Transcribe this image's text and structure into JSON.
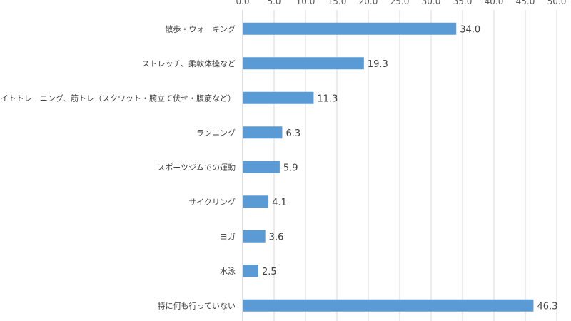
{
  "chart_data": {
    "type": "bar",
    "orientation": "horizontal",
    "categories": [
      "散歩・ウォーキング",
      "ストレッチ、柔軟体操など",
      "ウェイトトレーニング、筋トレ（スクワット・腕立て伏せ・腹筋など）",
      "ランニング",
      "スポーツジムでの運動",
      "サイクリング",
      "ヨガ",
      "水泳",
      "特に何も行っていない"
    ],
    "values": [
      34.0,
      19.3,
      11.3,
      6.3,
      5.9,
      4.1,
      3.6,
      2.5,
      46.3
    ],
    "value_labels": [
      "34.0",
      "19.3",
      "11.3",
      "6.3",
      "5.9",
      "4.1",
      "3.6",
      "2.5",
      "46.3"
    ],
    "x_ticks": [
      "0.0",
      "5.0",
      "10.0",
      "15.0",
      "20.0",
      "25.0",
      "30.0",
      "35.0",
      "40.0",
      "45.0",
      "50.0"
    ],
    "xlim": [
      0,
      50
    ],
    "x_axis_position": "top",
    "grid": true,
    "title": "",
    "xlabel": "",
    "ylabel": "",
    "colors": {
      "bar": "#5b9bd5",
      "grid": "#d9d9d9",
      "axis": "#bfbfbf"
    }
  }
}
